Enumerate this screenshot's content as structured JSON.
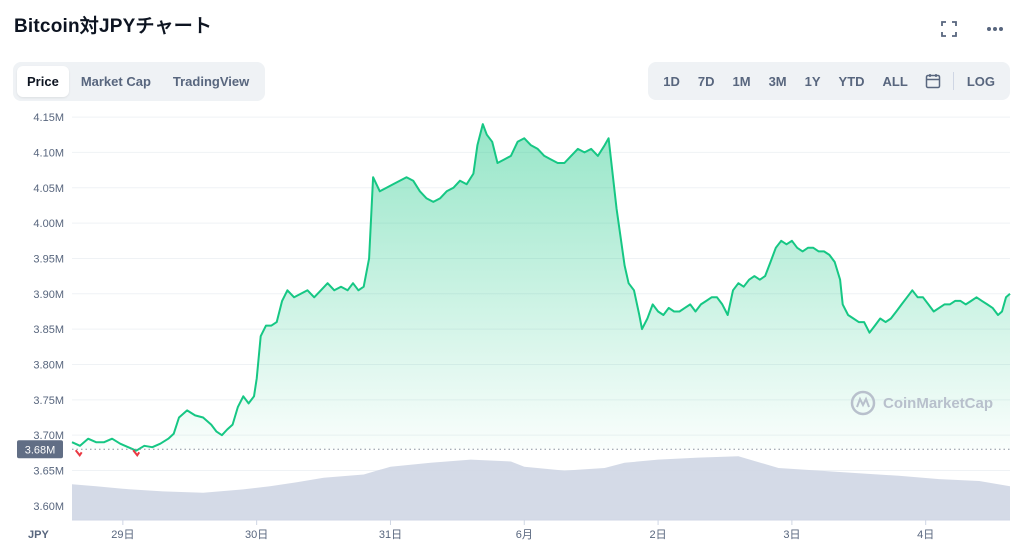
{
  "header": {
    "title": "Bitcoin対JPYチャート"
  },
  "tabs": [
    {
      "label": "Price"
    },
    {
      "label": "Market Cap"
    },
    {
      "label": "TradingView"
    }
  ],
  "ranges": [
    {
      "label": "1D"
    },
    {
      "label": "7D"
    },
    {
      "label": "1M"
    },
    {
      "label": "3M"
    },
    {
      "label": "1Y"
    },
    {
      "label": "YTD"
    },
    {
      "label": "ALL"
    }
  ],
  "log_label": "LOG",
  "icons": {
    "fullscreen": "fullscreen-icon",
    "more": "more-icon",
    "calendar": "calendar-icon"
  },
  "colors": {
    "up": "#16c784",
    "down": "#ea3943",
    "volume": "#cfd6e4"
  },
  "watermark": "CoinMarketCap",
  "chart_data": {
    "type": "area",
    "title": "",
    "currency_label": "JPY",
    "y_ticks": [
      "4.15M",
      "4.10M",
      "4.05M",
      "4.00M",
      "3.95M",
      "3.90M",
      "3.85M",
      "3.80M",
      "3.75M",
      "3.70M",
      "3.65M",
      "3.60M"
    ],
    "ylim": [
      3.58,
      4.16
    ],
    "x_ticks": [
      {
        "label": "29日",
        "t": 1.0
      },
      {
        "label": "30日",
        "t": 2.0
      },
      {
        "label": "31日",
        "t": 3.0
      },
      {
        "label": "6月",
        "t": 4.0
      },
      {
        "label": "2日",
        "t": 5.0
      },
      {
        "label": "3日",
        "t": 6.0
      },
      {
        "label": "4日",
        "t": 7.0
      }
    ],
    "xlim": [
      0.62,
      7.63
    ],
    "reference_price": {
      "label": "3.68M",
      "value": 3.68
    },
    "grid": true,
    "series": [
      {
        "values": [
          [
            0.62,
            3.69
          ],
          [
            0.68,
            3.685
          ],
          [
            0.74,
            3.695
          ],
          [
            0.8,
            3.69
          ],
          [
            0.86,
            3.69
          ],
          [
            0.92,
            3.695
          ],
          [
            0.98,
            3.688
          ],
          [
            1.04,
            3.683
          ],
          [
            1.1,
            3.678
          ],
          [
            1.16,
            3.685
          ],
          [
            1.22,
            3.683
          ],
          [
            1.28,
            3.688
          ],
          [
            1.34,
            3.695
          ],
          [
            1.38,
            3.702
          ],
          [
            1.42,
            3.725
          ],
          [
            1.48,
            3.735
          ],
          [
            1.54,
            3.728
          ],
          [
            1.6,
            3.725
          ],
          [
            1.66,
            3.715
          ],
          [
            1.7,
            3.705
          ],
          [
            1.74,
            3.7
          ],
          [
            1.78,
            3.708
          ],
          [
            1.82,
            3.715
          ],
          [
            1.86,
            3.74
          ],
          [
            1.9,
            3.755
          ],
          [
            1.94,
            3.745
          ],
          [
            1.98,
            3.755
          ],
          [
            2.0,
            3.78
          ],
          [
            2.03,
            3.84
          ],
          [
            2.07,
            3.855
          ],
          [
            2.11,
            3.855
          ],
          [
            2.15,
            3.86
          ],
          [
            2.19,
            3.89
          ],
          [
            2.23,
            3.905
          ],
          [
            2.28,
            3.895
          ],
          [
            2.33,
            3.9
          ],
          [
            2.38,
            3.905
          ],
          [
            2.43,
            3.895
          ],
          [
            2.48,
            3.905
          ],
          [
            2.53,
            3.915
          ],
          [
            2.58,
            3.905
          ],
          [
            2.63,
            3.91
          ],
          [
            2.68,
            3.905
          ],
          [
            2.72,
            3.915
          ],
          [
            2.76,
            3.905
          ],
          [
            2.8,
            3.91
          ],
          [
            2.84,
            3.95
          ],
          [
            2.87,
            4.065
          ],
          [
            2.92,
            4.045
          ],
          [
            2.97,
            4.05
          ],
          [
            3.02,
            4.055
          ],
          [
            3.07,
            4.06
          ],
          [
            3.12,
            4.065
          ],
          [
            3.17,
            4.06
          ],
          [
            3.22,
            4.045
          ],
          [
            3.27,
            4.035
          ],
          [
            3.32,
            4.03
          ],
          [
            3.37,
            4.035
          ],
          [
            3.42,
            4.045
          ],
          [
            3.47,
            4.05
          ],
          [
            3.52,
            4.06
          ],
          [
            3.57,
            4.055
          ],
          [
            3.62,
            4.07
          ],
          [
            3.65,
            4.11
          ],
          [
            3.69,
            4.14
          ],
          [
            3.72,
            4.125
          ],
          [
            3.76,
            4.115
          ],
          [
            3.8,
            4.085
          ],
          [
            3.85,
            4.09
          ],
          [
            3.9,
            4.095
          ],
          [
            3.95,
            4.115
          ],
          [
            4.0,
            4.12
          ],
          [
            4.05,
            4.11
          ],
          [
            4.1,
            4.105
          ],
          [
            4.15,
            4.095
          ],
          [
            4.2,
            4.09
          ],
          [
            4.25,
            4.085
          ],
          [
            4.3,
            4.085
          ],
          [
            4.35,
            4.095
          ],
          [
            4.4,
            4.105
          ],
          [
            4.45,
            4.1
          ],
          [
            4.5,
            4.105
          ],
          [
            4.55,
            4.095
          ],
          [
            4.6,
            4.11
          ],
          [
            4.63,
            4.12
          ],
          [
            4.66,
            4.07
          ],
          [
            4.69,
            4.02
          ],
          [
            4.72,
            3.98
          ],
          [
            4.75,
            3.94
          ],
          [
            4.78,
            3.915
          ],
          [
            4.82,
            3.905
          ],
          [
            4.86,
            3.87
          ],
          [
            4.88,
            3.85
          ],
          [
            4.92,
            3.865
          ],
          [
            4.96,
            3.885
          ],
          [
            5.0,
            3.875
          ],
          [
            5.04,
            3.87
          ],
          [
            5.08,
            3.88
          ],
          [
            5.12,
            3.875
          ],
          [
            5.16,
            3.875
          ],
          [
            5.2,
            3.88
          ],
          [
            5.24,
            3.885
          ],
          [
            5.28,
            3.875
          ],
          [
            5.32,
            3.885
          ],
          [
            5.36,
            3.89
          ],
          [
            5.4,
            3.895
          ],
          [
            5.44,
            3.895
          ],
          [
            5.48,
            3.885
          ],
          [
            5.52,
            3.87
          ],
          [
            5.56,
            3.905
          ],
          [
            5.6,
            3.915
          ],
          [
            5.64,
            3.91
          ],
          [
            5.68,
            3.92
          ],
          [
            5.72,
            3.925
          ],
          [
            5.76,
            3.92
          ],
          [
            5.8,
            3.925
          ],
          [
            5.84,
            3.945
          ],
          [
            5.88,
            3.965
          ],
          [
            5.92,
            3.975
          ],
          [
            5.96,
            3.97
          ],
          [
            6.0,
            3.975
          ],
          [
            6.04,
            3.965
          ],
          [
            6.08,
            3.96
          ],
          [
            6.12,
            3.965
          ],
          [
            6.16,
            3.965
          ],
          [
            6.2,
            3.96
          ],
          [
            6.24,
            3.96
          ],
          [
            6.28,
            3.955
          ],
          [
            6.32,
            3.945
          ],
          [
            6.36,
            3.92
          ],
          [
            6.38,
            3.885
          ],
          [
            6.42,
            3.87
          ],
          [
            6.46,
            3.865
          ],
          [
            6.5,
            3.86
          ],
          [
            6.54,
            3.86
          ],
          [
            6.58,
            3.845
          ],
          [
            6.62,
            3.855
          ],
          [
            6.66,
            3.865
          ],
          [
            6.7,
            3.86
          ],
          [
            6.74,
            3.865
          ],
          [
            6.78,
            3.875
          ],
          [
            6.82,
            3.885
          ],
          [
            6.86,
            3.895
          ],
          [
            6.9,
            3.905
          ],
          [
            6.94,
            3.895
          ],
          [
            6.98,
            3.895
          ],
          [
            7.02,
            3.885
          ],
          [
            7.06,
            3.875
          ],
          [
            7.1,
            3.88
          ],
          [
            7.14,
            3.885
          ],
          [
            7.18,
            3.885
          ],
          [
            7.22,
            3.89
          ],
          [
            7.26,
            3.89
          ],
          [
            7.3,
            3.885
          ],
          [
            7.34,
            3.89
          ],
          [
            7.38,
            3.895
          ],
          [
            7.42,
            3.89
          ],
          [
            7.46,
            3.885
          ],
          [
            7.5,
            3.88
          ],
          [
            7.54,
            3.87
          ],
          [
            7.57,
            3.875
          ],
          [
            7.6,
            3.895
          ],
          [
            7.63,
            3.9
          ]
        ]
      }
    ],
    "volume": [
      [
        0.62,
        0.55
      ],
      [
        0.8,
        0.52
      ],
      [
        1.0,
        0.48
      ],
      [
        1.3,
        0.44
      ],
      [
        1.6,
        0.42
      ],
      [
        1.9,
        0.47
      ],
      [
        2.1,
        0.52
      ],
      [
        2.3,
        0.58
      ],
      [
        2.5,
        0.65
      ],
      [
        2.8,
        0.7
      ],
      [
        3.0,
        0.82
      ],
      [
        3.3,
        0.88
      ],
      [
        3.6,
        0.93
      ],
      [
        3.9,
        0.9
      ],
      [
        4.0,
        0.82
      ],
      [
        4.3,
        0.76
      ],
      [
        4.6,
        0.8
      ],
      [
        4.75,
        0.88
      ],
      [
        5.0,
        0.93
      ],
      [
        5.3,
        0.96
      ],
      [
        5.6,
        0.98
      ],
      [
        5.9,
        0.8
      ],
      [
        6.2,
        0.76
      ],
      [
        6.5,
        0.72
      ],
      [
        6.8,
        0.68
      ],
      [
        7.1,
        0.63
      ],
      [
        7.4,
        0.6
      ],
      [
        7.63,
        0.52
      ]
    ],
    "down_marks": [
      0.67,
      1.1
    ]
  }
}
